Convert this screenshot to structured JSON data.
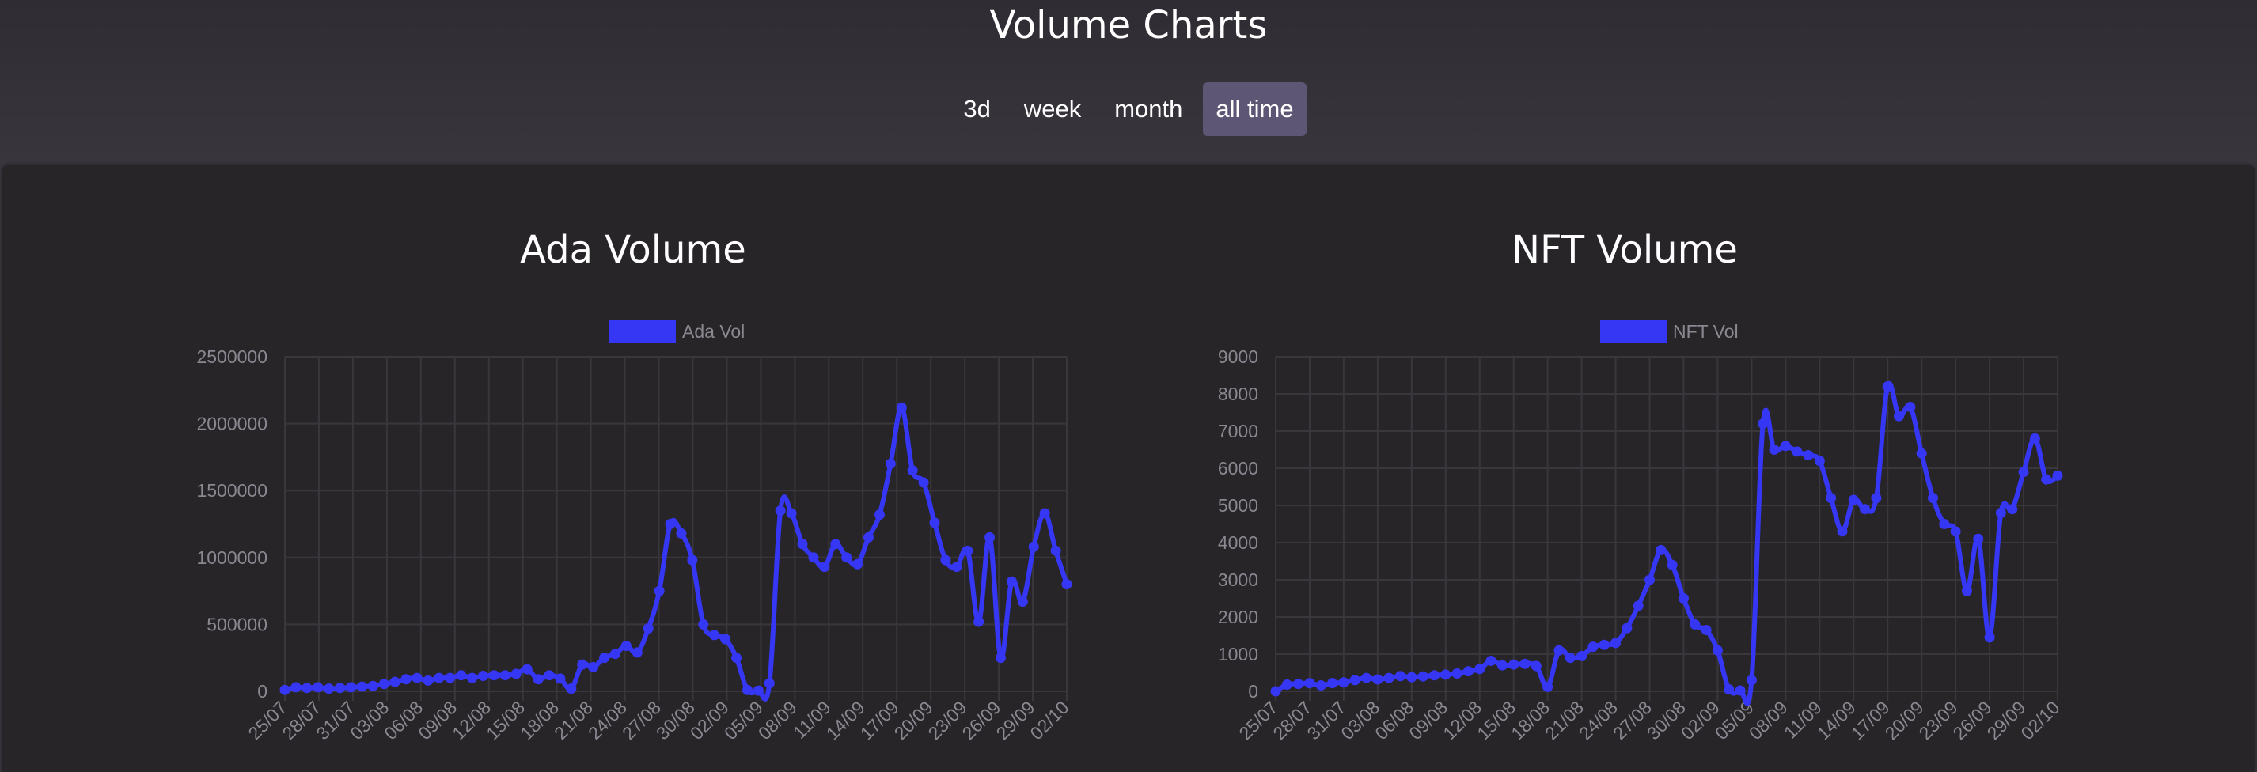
{
  "page": {
    "title": "Volume Charts"
  },
  "ranges": {
    "items": [
      "3d",
      "week",
      "month",
      "all time"
    ],
    "active": "all time"
  },
  "colors": {
    "accent": "#3636f5",
    "grid": "#3a373c",
    "tick": "#8a8890",
    "active_tab": "#5e5675"
  },
  "chart_data": [
    {
      "type": "line",
      "title": "Ada Volume",
      "legend": "Ada Vol",
      "legend_position": "top",
      "ylim": [
        0,
        2500000
      ],
      "yticks": [
        0,
        500000,
        1000000,
        1500000,
        2000000,
        2500000
      ],
      "ytick_labels": [
        "0",
        "500000",
        "1000000",
        "1500000",
        "2000000",
        "2500000"
      ],
      "xtick_labels": [
        "25/07",
        "28/07",
        "31/07",
        "03/08",
        "06/08",
        "09/08",
        "12/08",
        "15/08",
        "18/08",
        "21/08",
        "24/08",
        "27/08",
        "30/08",
        "02/09",
        "05/09",
        "08/09",
        "11/09",
        "14/09",
        "17/09",
        "20/09",
        "23/09",
        "26/09",
        "29/09",
        "02/10"
      ],
      "values": [
        10000,
        30000,
        25000,
        30000,
        20000,
        25000,
        30000,
        35000,
        40000,
        55000,
        70000,
        90000,
        100000,
        80000,
        100000,
        100000,
        120000,
        100000,
        115000,
        120000,
        120000,
        130000,
        165000,
        90000,
        120000,
        95000,
        20000,
        200000,
        180000,
        250000,
        280000,
        340000,
        290000,
        470000,
        750000,
        1250000,
        1180000,
        980000,
        500000,
        420000,
        390000,
        250000,
        10000,
        5000,
        60000,
        1350000,
        1330000,
        1100000,
        1000000,
        930000,
        1100000,
        1000000,
        950000,
        1150000,
        1320000,
        1700000,
        2120000,
        1650000,
        1560000,
        1260000,
        980000,
        930000,
        1050000,
        520000,
        1150000,
        250000,
        820000,
        670000,
        1080000,
        1330000,
        1050000,
        800000
      ]
    },
    {
      "type": "line",
      "title": "NFT Volume",
      "legend": "NFT Vol",
      "legend_position": "top",
      "ylim": [
        0,
        9000
      ],
      "yticks": [
        0,
        1000,
        2000,
        3000,
        4000,
        5000,
        6000,
        7000,
        8000,
        9000
      ],
      "ytick_labels": [
        "0",
        "1000",
        "2000",
        "3000",
        "4000",
        "5000",
        "6000",
        "7000",
        "8000",
        "9000"
      ],
      "xtick_labels": [
        "25/07",
        "28/07",
        "31/07",
        "03/08",
        "06/08",
        "09/08",
        "12/08",
        "15/08",
        "18/08",
        "21/08",
        "24/08",
        "27/08",
        "30/08",
        "02/09",
        "05/09",
        "08/09",
        "11/09",
        "14/09",
        "17/09",
        "20/09",
        "23/09",
        "26/09",
        "29/09",
        "02/10"
      ],
      "values": [
        0,
        180,
        200,
        220,
        160,
        220,
        240,
        300,
        360,
        320,
        360,
        410,
        380,
        400,
        430,
        450,
        480,
        540,
        600,
        820,
        700,
        720,
        740,
        680,
        120,
        1100,
        900,
        950,
        1200,
        1250,
        1300,
        1700,
        2300,
        3000,
        3800,
        3400,
        2500,
        1800,
        1650,
        1100,
        50,
        20,
        300,
        7200,
        6500,
        6600,
        6450,
        6350,
        6200,
        5200,
        4300,
        5150,
        4900,
        5200,
        8200,
        7400,
        7650,
        6400,
        5200,
        4500,
        4300,
        2700,
        4100,
        1450,
        4800,
        4900,
        5900,
        6800,
        5700,
        5800
      ]
    }
  ]
}
